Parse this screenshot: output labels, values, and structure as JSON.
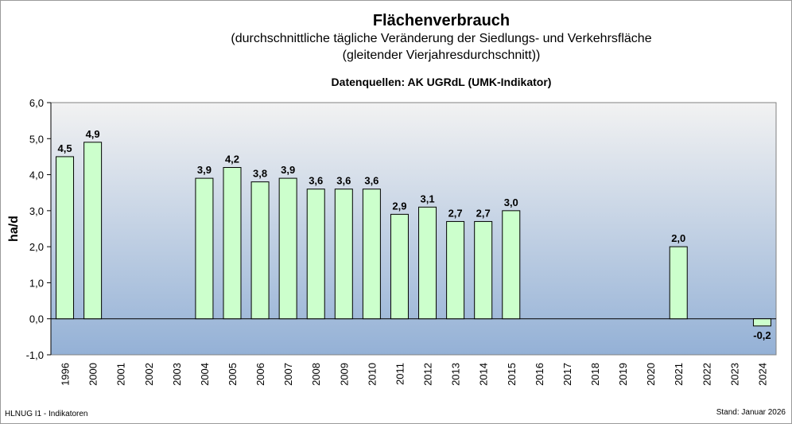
{
  "header": {
    "title": "Flächenverbrauch",
    "subtitle1": "(durchschnittliche tägliche Veränderung der Siedlungs- und Verkehrsfläche",
    "subtitle2": "(gleitender Vierjahresdurchschnitt))",
    "source": "Datenquellen: AK UGRdL (UMK-Indikator)"
  },
  "footer": {
    "left": "HLNUG I1 - Indikatoren",
    "right": "Stand: Januar 2026"
  },
  "chart_data": {
    "type": "bar",
    "ylabel": "ha/d",
    "ylim": [
      -1.0,
      6.0
    ],
    "yticks": [
      "6,0",
      "5,0",
      "4,0",
      "3,0",
      "2,0",
      "1,0",
      "0,0",
      "-1,0"
    ],
    "categories": [
      "1996",
      "2000",
      "2001",
      "2002",
      "2003",
      "2004",
      "2005",
      "2006",
      "2007",
      "2008",
      "2009",
      "2010",
      "2011",
      "2012",
      "2013",
      "2014",
      "2015",
      "2016",
      "2017",
      "2018",
      "2019",
      "2020",
      "2021",
      "2022",
      "2023",
      "2024"
    ],
    "values": [
      4.5,
      4.9,
      null,
      null,
      null,
      3.9,
      4.2,
      3.8,
      3.9,
      3.6,
      3.6,
      3.6,
      2.9,
      3.1,
      2.7,
      2.7,
      3.0,
      null,
      null,
      null,
      null,
      null,
      2.0,
      null,
      null,
      -0.2
    ],
    "value_labels": [
      "4,5",
      "4,9",
      "",
      "",
      "",
      "3,9",
      "4,2",
      "3,8",
      "3,9",
      "3,6",
      "3,6",
      "3,6",
      "2,9",
      "3,1",
      "2,7",
      "2,7",
      "3,0",
      "",
      "",
      "",
      "",
      "",
      "2,0",
      "",
      "",
      "-0,2"
    ],
    "colors": {
      "bar_fill": "#ccffcc",
      "bar_stroke": "#000000",
      "bg_top": "#f2f2f2",
      "bg_bottom": "#94b1d6"
    },
    "grid": false,
    "legend": "none"
  }
}
